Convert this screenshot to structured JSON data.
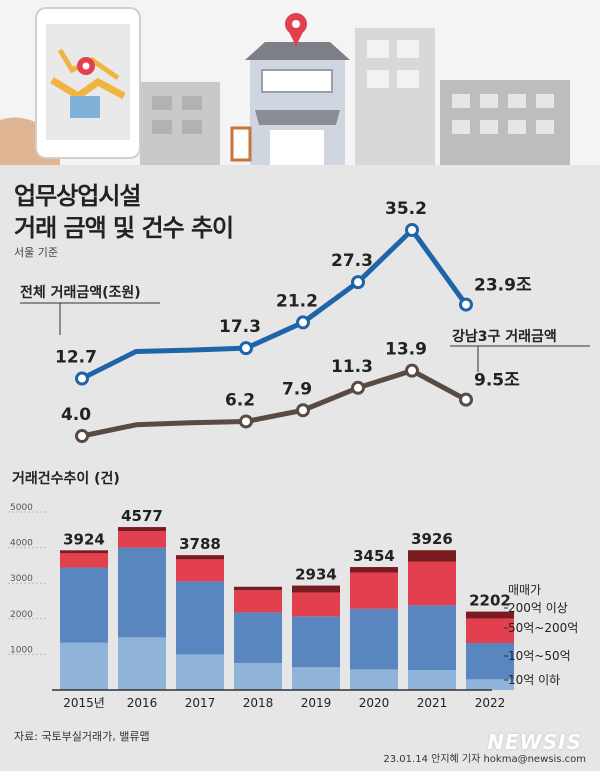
{
  "header": {
    "title_line1": "업무상업시설",
    "title_line2": "거래 금액 및 건수 추이",
    "subtitle": "서울 기준"
  },
  "source": "자료: 국토부실거래가, 밸류맵",
  "credit": "23.01.14 안지혜 기자 hokma@newsis.com",
  "watermark": "NEWSIS",
  "colors": {
    "total_line": "#1f64a8",
    "gangnam_line": "#5a4a44",
    "seg_0": "#8fb3d9",
    "seg_1": "#5a86bf",
    "seg_2": "#e2404e",
    "seg_3": "#7a1b22"
  },
  "chart_data": [
    {
      "type": "line",
      "x": [
        "2015",
        "2016",
        "2017",
        "2018",
        "2019",
        "2020",
        "2021",
        "2022"
      ],
      "series": [
        {
          "name": "전체 거래금액(조원)",
          "values": [
            12.7,
            16.8,
            17.0,
            17.3,
            21.2,
            27.3,
            35.2,
            23.9
          ],
          "labels": [
            "12.7",
            "",
            "",
            "17.3",
            "21.2",
            "27.3",
            "35.2",
            "23.9조"
          ]
        },
        {
          "name": "강남3구 거래금액",
          "values": [
            4.0,
            5.7,
            6.0,
            6.2,
            7.9,
            11.3,
            13.9,
            9.5
          ],
          "labels": [
            "4.0",
            "",
            "",
            "6.2",
            "7.9",
            "11.3",
            "13.9",
            "9.5조"
          ]
        }
      ]
    },
    {
      "type": "bar",
      "stacked": true,
      "title": "거래건수추이 (건)",
      "categories": [
        "2015년",
        "2016",
        "2017",
        "2018",
        "2019",
        "2020",
        "2021",
        "2022"
      ],
      "totals": [
        3924,
        4577,
        3788,
        2900,
        2934,
        3454,
        3926,
        2202
      ],
      "total_labels": [
        "3924",
        "4577",
        "3788",
        "",
        "2934",
        "3454",
        "3926",
        "2202"
      ],
      "ylim": [
        0,
        5000
      ],
      "yticks": [
        1000,
        2000,
        3000,
        4000,
        5000
      ],
      "legend_title": "매매가",
      "series": [
        {
          "name": "10억 이하",
          "values": [
            1330,
            1480,
            1000,
            760,
            640,
            580,
            560,
            300
          ]
        },
        {
          "name": "10억~50억",
          "values": [
            2110,
            2520,
            2050,
            1420,
            1430,
            1700,
            1820,
            1020
          ]
        },
        {
          "name": "50억~200억",
          "values": [
            400,
            460,
            620,
            620,
            670,
            1020,
            1230,
            690
          ]
        },
        {
          "name": "200억 이상",
          "values": [
            84,
            117,
            118,
            100,
            194,
            154,
            316,
            192
          ]
        }
      ]
    }
  ]
}
